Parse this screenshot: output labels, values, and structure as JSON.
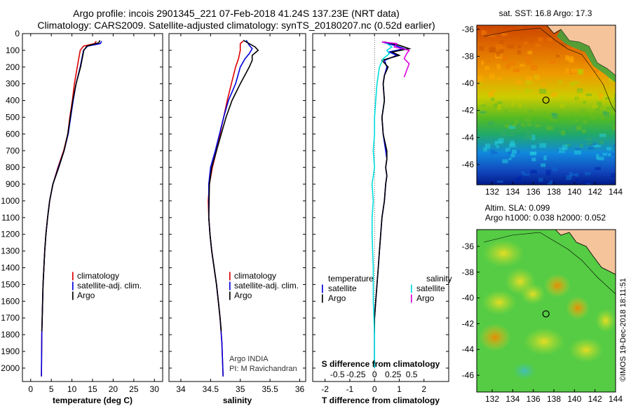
{
  "header": {
    "title_line1": "Argo profile: incois 2901345_221 07-Feb-2018 41.24S 137.23E (NRT data)",
    "title_line2": "Climatology: CARS2009. Satellite-adjusted climatology: synTS_20180207.nc (0.52d earlier)"
  },
  "colors": {
    "climatology": "#dd0000",
    "satellite": "#0000dd",
    "argo": "#000000",
    "s_satellite": "#00dddd",
    "s_argo": "#dd00dd"
  },
  "legend_glyph": "|",
  "credits": {
    "line1": "Argo INDIA",
    "line2": "PI: M Ravichandran",
    "imos": "©IMOS 19-Dec-2018 18:11:51"
  },
  "chart_data": [
    {
      "type": "line",
      "xlabel": "temperature (deg C)",
      "ylabel": "",
      "xlim": [
        -2,
        32
      ],
      "ylim": [
        2080,
        0
      ],
      "xticks": [
        0,
        5,
        10,
        15,
        20,
        25,
        30
      ],
      "yticks": [
        0,
        100,
        200,
        300,
        400,
        500,
        600,
        700,
        800,
        900,
        1000,
        1100,
        1200,
        1300,
        1400,
        1500,
        1600,
        1700,
        1800,
        1900,
        2000
      ],
      "series": [
        {
          "name": "climatology",
          "color": "#dd0000",
          "x": [
            15.9,
            15.5,
            12.8,
            12.0,
            11.3,
            10.6,
            10.1,
            9.5,
            9.0,
            8.0,
            6.6,
            5.4,
            4.6,
            4.1,
            3.7,
            3.4,
            3.2,
            3.0,
            2.9,
            2.8,
            2.7,
            2.6
          ],
          "y": [
            45,
            60,
            75,
            100,
            200,
            300,
            400,
            500,
            600,
            700,
            800,
            900,
            1000,
            1100,
            1200,
            1300,
            1400,
            1500,
            1600,
            1700,
            1800,
            2050
          ]
        },
        {
          "name": "satellite-adj. clim.",
          "color": "#0000dd",
          "x": [
            17.2,
            16.9,
            13.8,
            12.8,
            12.0,
            11.0,
            10.3,
            9.7,
            9.1,
            8.1,
            6.7,
            5.4,
            4.6,
            4.1,
            3.7,
            3.4,
            3.2,
            3.0,
            2.9,
            2.8,
            2.7,
            2.6
          ],
          "y": [
            45,
            60,
            75,
            100,
            200,
            300,
            400,
            500,
            600,
            700,
            800,
            900,
            1000,
            1100,
            1200,
            1300,
            1400,
            1500,
            1600,
            1700,
            1800,
            2050
          ]
        },
        {
          "name": "Argo",
          "color": "#000000",
          "x": [
            16.8,
            16.5,
            13.6,
            12.9,
            12.1,
            11.0,
            10.2,
            9.6,
            9.0,
            8.1,
            6.8,
            5.4,
            4.6,
            4.1,
            3.7,
            3.4,
            3.2,
            3.0,
            2.9,
            2.8,
            2.7
          ],
          "y": [
            40,
            55,
            75,
            100,
            200,
            300,
            400,
            500,
            600,
            700,
            800,
            900,
            1000,
            1100,
            1200,
            1300,
            1400,
            1500,
            1600,
            1700,
            1780
          ]
        }
      ],
      "legend": {
        "entries": [
          "climatology",
          "satellite-adj. clim.",
          "Argo"
        ]
      }
    },
    {
      "type": "line",
      "xlabel": "salinity",
      "ylabel": "",
      "xlim": [
        33.8,
        36.1
      ],
      "ylim": [
        2080,
        0
      ],
      "xticks": [
        34,
        34.5,
        35,
        35.5,
        36
      ],
      "series": [
        {
          "name": "climatology",
          "color": "#dd0000",
          "x": [
            35.05,
            35.0,
            35.0,
            34.97,
            34.92,
            34.85,
            34.78,
            34.72,
            34.66,
            34.6,
            34.53,
            34.48,
            34.46,
            34.47,
            34.49,
            34.52,
            34.56,
            34.6,
            34.63,
            34.66,
            34.69,
            34.71
          ],
          "y": [
            45,
            60,
            100,
            150,
            200,
            300,
            400,
            500,
            600,
            700,
            800,
            900,
            1000,
            1100,
            1200,
            1300,
            1400,
            1500,
            1600,
            1700,
            1850,
            2050
          ]
        },
        {
          "name": "satellite-adj. clim.",
          "color": "#0000dd",
          "x": [
            35.1,
            35.15,
            35.2,
            35.15,
            35.08,
            35.0,
            34.92,
            34.8,
            34.72,
            34.65,
            34.58,
            34.5,
            34.47,
            34.47,
            34.49,
            34.52,
            34.56,
            34.6,
            34.63,
            34.66,
            34.69,
            34.71
          ],
          "y": [
            40,
            70,
            90,
            120,
            150,
            200,
            300,
            400,
            500,
            600,
            700,
            800,
            900,
            1100,
            1200,
            1300,
            1400,
            1500,
            1600,
            1700,
            1850,
            2050
          ]
        },
        {
          "name": "Argo",
          "color": "#000000",
          "x": [
            35.05,
            35.15,
            35.25,
            35.3,
            35.2,
            35.2,
            35.15,
            35.0,
            34.86,
            34.76,
            34.68,
            34.6,
            34.52,
            34.48,
            34.47,
            34.49,
            34.52,
            34.56,
            34.6,
            34.63,
            34.66,
            34.68
          ],
          "y": [
            40,
            60,
            80,
            100,
            130,
            160,
            200,
            300,
            400,
            500,
            600,
            700,
            800,
            900,
            1100,
            1200,
            1300,
            1400,
            1500,
            1600,
            1700,
            1780
          ]
        }
      ],
      "legend": {
        "entries": [
          "climatology",
          "satellite-adj. clim.",
          "Argo"
        ]
      }
    },
    {
      "type": "line",
      "xlabel": "T difference from climatology",
      "ylabel": "",
      "xlim": [
        -2.5,
        3.0
      ],
      "ylim": [
        2080,
        0
      ],
      "xticks": [
        -2,
        -1,
        0,
        1,
        2
      ],
      "secondary_axis": {
        "title": "S difference from climatology",
        "labels": [
          "-0.5",
          "-0.25",
          "0",
          "0.25",
          "0.5"
        ]
      },
      "series": [
        {
          "name": "T satellite",
          "color": "#0000dd",
          "x": [
            0.3,
            0.8,
            1.2,
            0.6,
            0.9,
            0.4,
            0.5,
            0.4,
            0.35,
            0.4,
            0.3,
            0.35,
            0.45,
            0.5,
            0.45,
            0.5,
            0.45,
            0.4,
            0.3,
            0.25,
            0.2,
            0.15,
            0.1,
            0.05,
            0,
            0,
            0,
            0
          ],
          "y": [
            50,
            70,
            90,
            110,
            130,
            160,
            200,
            250,
            300,
            400,
            500,
            600,
            700,
            750,
            800,
            850,
            900,
            1000,
            1100,
            1200,
            1300,
            1400,
            1500,
            1600,
            1700,
            1800,
            1900,
            2000
          ]
        },
        {
          "name": "T Argo",
          "color": "#000000",
          "x": [
            0.4,
            1.0,
            1.4,
            0.7,
            1.0,
            0.3,
            0.55,
            0.4,
            0.35,
            0.4,
            0.3,
            0.35,
            0.5,
            0.5,
            0.45,
            0.5,
            0.45,
            0.4,
            0.3,
            0.25,
            0.2,
            0.15,
            0.1,
            0.05,
            0,
            0,
            0,
            0
          ],
          "y": [
            50,
            70,
            90,
            110,
            130,
            160,
            200,
            250,
            300,
            400,
            500,
            600,
            700,
            750,
            800,
            850,
            900,
            1000,
            1100,
            1200,
            1300,
            1400,
            1500,
            1600,
            1700,
            1800,
            1900,
            2000
          ]
        },
        {
          "name": "S satellite",
          "color": "#00dddd",
          "x": [
            0.5,
            0.7,
            0.5,
            0.6,
            0.35,
            0.2,
            0.1,
            0.05,
            0.0,
            0.0,
            -0.05,
            0.0,
            -0.1,
            -0.05,
            -0.1,
            -0.1,
            -0.05,
            -0.05,
            0,
            0,
            0
          ],
          "y": [
            60,
            80,
            100,
            120,
            150,
            200,
            300,
            400,
            500,
            600,
            700,
            800,
            900,
            1000,
            1100,
            1200,
            1400,
            1600,
            1800,
            1900,
            2000
          ]
        },
        {
          "name": "S Argo",
          "color": "#dd00dd",
          "x": [
            0.3,
            0.9,
            0.8,
            1.4,
            1.3,
            1.2,
            1.4,
            1.3,
            1.2
          ],
          "y": [
            50,
            60,
            80,
            100,
            120,
            150,
            180,
            220,
            260
          ]
        }
      ],
      "legend": {
        "left_title": "temperature",
        "right_title": "salinity",
        "left_entries": [
          "satellite",
          "Argo"
        ],
        "right_entries": [
          "satellite",
          "Argo"
        ]
      }
    },
    {
      "type": "heatmap",
      "title": "sat. SST: 16.8 Argo: 17.3",
      "xticks": [
        132,
        134,
        136,
        138,
        140,
        142,
        144
      ],
      "yticks": [
        -36,
        -38,
        -40,
        -42,
        -44,
        -46
      ],
      "xlim": [
        130.5,
        144
      ],
      "ylim": [
        -47.5,
        -35.7
      ],
      "argo_position": {
        "lon": 137.23,
        "lat": -41.24
      }
    },
    {
      "type": "heatmap",
      "title": "Altim. SLA: 0.099",
      "subtitle": "Argo h1000: 0.038 h2000: 0.052",
      "xticks": [
        132,
        134,
        136,
        138,
        140,
        142,
        144
      ],
      "yticks": [
        -36,
        -38,
        -40,
        -42,
        -44,
        -46
      ],
      "xlim": [
        130.5,
        144
      ],
      "ylim": [
        -47.3,
        -34.7
      ],
      "argo_position": {
        "lon": 137.23,
        "lat": -41.24
      }
    }
  ]
}
